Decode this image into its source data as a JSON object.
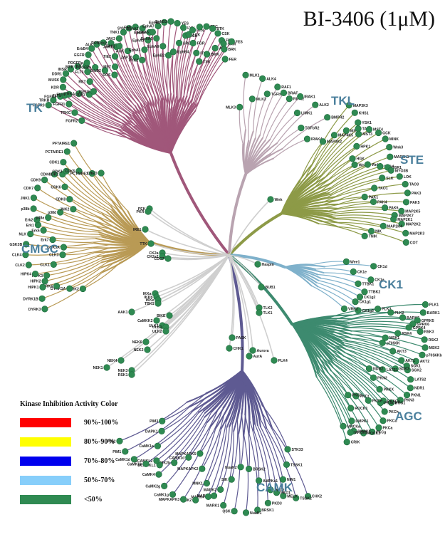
{
  "title": "BI-3406 (1μM)",
  "colors": {
    "TK": "#a0577a",
    "TKL": "#b9a3b0",
    "STE": "#8d9a47",
    "CK1": "#7fb1cb",
    "AGC": "#3d8a6f",
    "CAMK": "#5e5a92",
    "CMGC": "#b99a55",
    "OTHER": "#cccccc",
    "dot": "#2f8a52",
    "dotEdge": "#1d6a3c",
    "group_label": "#4a7f9c"
  },
  "legend": {
    "title": "Kinase Inhibition Activity Color",
    "items": [
      {
        "label": "90%-100%",
        "color": "#ff0000"
      },
      {
        "label": "80%-90%",
        "color": "#ffff00"
      },
      {
        "label": "70%-80%",
        "color": "#0000ee"
      },
      {
        "label": "50%-70%",
        "color": "#87cefa"
      },
      {
        "label": "<50%",
        "color": "#2f8a52"
      }
    ]
  },
  "groups": [
    {
      "key": "TK",
      "name": "TK"
    },
    {
      "key": "TKL",
      "name": "TKL"
    },
    {
      "key": "STE",
      "name": "STE"
    },
    {
      "key": "CK1",
      "name": "CK1"
    },
    {
      "key": "AGC",
      "name": "AGC"
    },
    {
      "key": "CAMK",
      "name": "CAMK"
    },
    {
      "key": "CMGC",
      "name": "CMGC"
    }
  ],
  "kinases": [
    {
      "g": "TK",
      "name": "FGFR2"
    },
    {
      "g": "TK",
      "name": "FGFR3"
    },
    {
      "g": "TK",
      "name": "TRKC"
    },
    {
      "g": "TK",
      "name": "TRKB"
    },
    {
      "g": "TK",
      "name": "FGFR1"
    },
    {
      "g": "TK",
      "name": "FGFR4"
    },
    {
      "g": "TK",
      "name": "FLT1"
    },
    {
      "g": "TK",
      "name": "FLT4"
    },
    {
      "g": "TK",
      "name": "KDR"
    },
    {
      "g": "TK",
      "name": "TRKA"
    },
    {
      "g": "TK",
      "name": "MUSK"
    },
    {
      "g": "TK",
      "name": "DDR2"
    },
    {
      "g": "TK",
      "name": "DDR1"
    },
    {
      "g": "TK",
      "name": "IGF1R"
    },
    {
      "g": "TK",
      "name": "INSR"
    },
    {
      "g": "TK",
      "name": "RET"
    },
    {
      "g": "TK",
      "name": "MER"
    },
    {
      "g": "TK",
      "name": "FLT3"
    },
    {
      "g": "TK",
      "name": "KIT"
    },
    {
      "g": "TK",
      "name": "PDGFRa"
    },
    {
      "g": "TK",
      "name": "PDGFRb"
    },
    {
      "g": "TK",
      "name": "EGFR"
    },
    {
      "g": "TK",
      "name": "ErbB2"
    },
    {
      "g": "TK",
      "name": "ErbB4"
    },
    {
      "g": "TK",
      "name": "ROS"
    },
    {
      "g": "TK",
      "name": "ALK"
    },
    {
      "g": "TK",
      "name": "MET"
    },
    {
      "g": "TK",
      "name": "RON"
    },
    {
      "g": "TK",
      "name": "TIE2"
    },
    {
      "g": "TK",
      "name": "TYK2"
    },
    {
      "g": "TK",
      "name": "JAK1"
    },
    {
      "g": "TK",
      "name": "JAK2"
    },
    {
      "g": "TK",
      "name": "JAK3"
    },
    {
      "g": "TK",
      "name": "ACK"
    },
    {
      "g": "TK",
      "name": "TNK1"
    },
    {
      "g": "TK",
      "name": "ZAP70"
    },
    {
      "g": "TK",
      "name": "SYK"
    },
    {
      "g": "TK",
      "name": "PYK2"
    },
    {
      "g": "TK",
      "name": "FAK"
    },
    {
      "g": "TK",
      "name": "EphA1"
    },
    {
      "g": "TK",
      "name": "EphA2"
    },
    {
      "g": "TK",
      "name": "EphA3"
    },
    {
      "g": "TK",
      "name": "EphA4"
    },
    {
      "g": "TK",
      "name": "EphA5"
    },
    {
      "g": "TK",
      "name": "EphA6"
    },
    {
      "g": "TK",
      "name": "EphA7"
    },
    {
      "g": "TK",
      "name": "EphA8"
    },
    {
      "g": "TK",
      "name": "EphB1"
    },
    {
      "g": "TK",
      "name": "EphB2"
    },
    {
      "g": "TK",
      "name": "EphB3"
    },
    {
      "g": "TK",
      "name": "EphB4"
    },
    {
      "g": "TK",
      "name": "YES"
    },
    {
      "g": "TK",
      "name": "SRC"
    },
    {
      "g": "TK",
      "name": "LYN"
    },
    {
      "g": "TK",
      "name": "HCK"
    },
    {
      "g": "TK",
      "name": "LCK"
    },
    {
      "g": "TK",
      "name": "FYN"
    },
    {
      "g": "TK",
      "name": "FGR"
    },
    {
      "g": "TK",
      "name": "BLK"
    },
    {
      "g": "TK",
      "name": "ITK"
    },
    {
      "g": "TK",
      "name": "TEC"
    },
    {
      "g": "TK",
      "name": "TXK"
    },
    {
      "g": "TK",
      "name": "BTK"
    },
    {
      "g": "TK",
      "name": "BMX"
    },
    {
      "g": "TK",
      "name": "CSK"
    },
    {
      "g": "TK",
      "name": "ABL"
    },
    {
      "g": "TK",
      "name": "FRK"
    },
    {
      "g": "TK",
      "name": "SRM"
    },
    {
      "g": "TK",
      "name": "BRK"
    },
    {
      "g": "TK",
      "name": "FES"
    },
    {
      "g": "TK",
      "name": "FER"
    },
    {
      "g": "TKL",
      "name": "MLK3"
    },
    {
      "g": "TKL",
      "name": "MLK1"
    },
    {
      "g": "TKL",
      "name": "MLK2"
    },
    {
      "g": "TKL",
      "name": "ALK4"
    },
    {
      "g": "TKL",
      "name": "TGFbR1"
    },
    {
      "g": "TKL",
      "name": "RAF1"
    },
    {
      "g": "TKL",
      "name": "BRAF"
    },
    {
      "g": "TKL",
      "name": "RIPK2"
    },
    {
      "g": "TKL",
      "name": "IRAK1"
    },
    {
      "g": "TKL",
      "name": "LIMK1"
    },
    {
      "g": "TKL",
      "name": "ALK2"
    },
    {
      "g": "TKL",
      "name": "TGFbR2"
    },
    {
      "g": "TKL",
      "name": "BMPR2"
    },
    {
      "g": "TKL",
      "name": "IRAK4"
    },
    {
      "g": "STE",
      "name": "MAP3K2"
    },
    {
      "g": "STE",
      "name": "MAP3K3"
    },
    {
      "g": "STE",
      "name": "MAP4K5"
    },
    {
      "g": "STE",
      "name": "KHS1"
    },
    {
      "g": "STE",
      "name": "MST1"
    },
    {
      "g": "STE",
      "name": "YSK1"
    },
    {
      "g": "STE",
      "name": "TAO2"
    },
    {
      "g": "STE",
      "name": "MST3"
    },
    {
      "g": "STE",
      "name": "MST4"
    },
    {
      "g": "STE",
      "name": "HPK1"
    },
    {
      "g": "STE",
      "name": "GCK"
    },
    {
      "g": "STE",
      "name": "HGK"
    },
    {
      "g": "STE",
      "name": "MINK"
    },
    {
      "g": "STE",
      "name": "Wnk1"
    },
    {
      "g": "STE",
      "name": "Wnk3"
    },
    {
      "g": "STE",
      "name": "Wnk2"
    },
    {
      "g": "STE",
      "name": "MAP3K1"
    },
    {
      "g": "STE",
      "name": "Wnk4"
    },
    {
      "g": "STE",
      "name": "OSR1"
    },
    {
      "g": "STE",
      "name": "MYO3B"
    },
    {
      "g": "STE",
      "name": "SLK"
    },
    {
      "g": "STE",
      "name": "LOK"
    },
    {
      "g": "STE",
      "name": "TAO1"
    },
    {
      "g": "STE",
      "name": "TAO3"
    },
    {
      "g": "STE",
      "name": "PAK1"
    },
    {
      "g": "STE",
      "name": "PAK3"
    },
    {
      "g": "STE",
      "name": "PAK4"
    },
    {
      "g": "STE",
      "name": "PAK5"
    },
    {
      "g": "STE",
      "name": "PAK6"
    },
    {
      "g": "STE",
      "name": "MAP2K5"
    },
    {
      "g": "STE",
      "name": "MAP2K7"
    },
    {
      "g": "STE",
      "name": "MAP2K1"
    },
    {
      "g": "STE",
      "name": "MAP2K2"
    },
    {
      "g": "STE",
      "name": "MAP2K4"
    },
    {
      "g": "STE",
      "name": "MAP2K3"
    },
    {
      "g": "STE",
      "name": "NIK"
    },
    {
      "g": "STE",
      "name": "COT"
    },
    {
      "g": "STE",
      "name": "TNIK"
    },
    {
      "g": "CK1",
      "name": "Wee1"
    },
    {
      "g": "CK1",
      "name": "CK1d"
    },
    {
      "g": "CK1",
      "name": "CK1e"
    },
    {
      "g": "CK1",
      "name": "CK1a"
    },
    {
      "g": "CK1",
      "name": "TTBK1"
    },
    {
      "g": "CK1",
      "name": "TTBK2"
    },
    {
      "g": "CK1",
      "name": "CK1g2"
    },
    {
      "g": "CK1",
      "name": "CK1g1"
    },
    {
      "g": "CK1",
      "name": "CK1g3"
    },
    {
      "g": "CK1",
      "name": "VRK2"
    },
    {
      "g": "AGC",
      "name": "PLK3"
    },
    {
      "g": "AGC",
      "name": "PLK1"
    },
    {
      "g": "AGC",
      "name": "PLK2"
    },
    {
      "g": "AGC",
      "name": "BARK1"
    },
    {
      "g": "AGC",
      "name": "BARK2"
    },
    {
      "g": "AGC",
      "name": "GPRK5"
    },
    {
      "g": "AGC",
      "name": "GPRK6"
    },
    {
      "g": "AGC",
      "name": "GPRK4"
    },
    {
      "g": "AGC",
      "name": "RSK3"
    },
    {
      "g": "AGC",
      "name": "RSK4"
    },
    {
      "g": "AGC",
      "name": "RSK2"
    },
    {
      "g": "AGC",
      "name": "MSK1"
    },
    {
      "g": "AGC",
      "name": "MSK2"
    },
    {
      "g": "AGC",
      "name": "p70S6K"
    },
    {
      "g": "AGC",
      "name": "p70S6Kb"
    },
    {
      "g": "AGC",
      "name": "AKT3"
    },
    {
      "g": "AGC",
      "name": "AKT2"
    },
    {
      "g": "AGC",
      "name": "AKT1"
    },
    {
      "g": "AGC",
      "name": "SGK1"
    },
    {
      "g": "AGC",
      "name": "SGK2"
    },
    {
      "g": "AGC",
      "name": "SGK3"
    },
    {
      "g": "AGC",
      "name": "LATS2"
    },
    {
      "g": "AGC",
      "name": "LATS1"
    },
    {
      "g": "AGC",
      "name": "NDR1"
    },
    {
      "g": "AGC",
      "name": "NDR2"
    },
    {
      "g": "AGC",
      "name": "PKN1"
    },
    {
      "g": "AGC",
      "name": "PKN2"
    },
    {
      "g": "AGC",
      "name": "PKN3"
    },
    {
      "g": "AGC",
      "name": "PRKX"
    },
    {
      "g": "AGC",
      "name": "PKG1"
    },
    {
      "g": "AGC",
      "name": "PKACa"
    },
    {
      "g": "AGC",
      "name": "PKACb"
    },
    {
      "g": "AGC",
      "name": "PKCh"
    },
    {
      "g": "AGC",
      "name": "PKCe"
    },
    {
      "g": "AGC",
      "name": "PKCd"
    },
    {
      "g": "AGC",
      "name": "PKCt"
    },
    {
      "g": "AGC",
      "name": "PKCa"
    },
    {
      "g": "AGC",
      "name": "PKCb"
    },
    {
      "g": "AGC",
      "name": "PKCg"
    },
    {
      "g": "AGC",
      "name": "ROCK1"
    },
    {
      "g": "AGC",
      "name": "ROCK2"
    },
    {
      "g": "AGC",
      "name": "DMPK1"
    },
    {
      "g": "AGC",
      "name": "DMPK2"
    },
    {
      "g": "AGC",
      "name": "MRCKb"
    },
    {
      "g": "AGC",
      "name": "MRCKa"
    },
    {
      "g": "AGC",
      "name": "CRIK"
    },
    {
      "g": "CAMK",
      "name": "STK33"
    },
    {
      "g": "CAMK",
      "name": "CHK2"
    },
    {
      "g": "CAMK",
      "name": "TSSK1"
    },
    {
      "g": "CAMK",
      "name": "TSSK2"
    },
    {
      "g": "CAMK",
      "name": "NIM1"
    },
    {
      "g": "CAMK",
      "name": "MELK"
    },
    {
      "g": "CAMK",
      "name": "PKD1"
    },
    {
      "g": "CAMK",
      "name": "PKD2"
    },
    {
      "g": "CAMK",
      "name": "PKD3"
    },
    {
      "g": "CAMK",
      "name": "AMPKa1"
    },
    {
      "g": "CAMK",
      "name": "BRSK1"
    },
    {
      "g": "CAMK",
      "name": "BRSK2"
    },
    {
      "g": "CAMK",
      "name": "NuaK1"
    },
    {
      "g": "CAMK",
      "name": "NuaK2"
    },
    {
      "g": "CAMK",
      "name": "QSK"
    },
    {
      "g": "CAMK",
      "name": "SIK"
    },
    {
      "g": "CAMK",
      "name": "MARK1"
    },
    {
      "g": "CAMK",
      "name": "MARK2"
    },
    {
      "g": "CAMK",
      "name": "MARK3"
    },
    {
      "g": "CAMK",
      "name": "MARK4"
    },
    {
      "g": "CAMK",
      "name": "MNK1"
    },
    {
      "g": "CAMK",
      "name": "MNK2"
    },
    {
      "g": "CAMK",
      "name": "MAPKAPK2"
    },
    {
      "g": "CAMK",
      "name": "MAPKAPK3"
    },
    {
      "g": "CAMK",
      "name": "MAPKAPK5"
    },
    {
      "g": "CAMK",
      "name": "CaMK1g"
    },
    {
      "g": "CAMK",
      "name": "CAMK1d"
    },
    {
      "g": "CAMK",
      "name": "CaMK2g"
    },
    {
      "g": "CAMK",
      "name": "CaMK2b"
    },
    {
      "g": "CAMK",
      "name": "CaMK4"
    },
    {
      "g": "CAMK",
      "name": "DCAMKL1"
    },
    {
      "g": "CAMK",
      "name": "DCAMKL2"
    },
    {
      "g": "CAMK",
      "name": "CaMK1b"
    },
    {
      "g": "CAMK",
      "name": "CaMK1a"
    },
    {
      "g": "CAMK",
      "name": "CaMK1d"
    },
    {
      "g": "CAMK",
      "name": "DAPK1"
    },
    {
      "g": "CAMK",
      "name": "PIM1"
    },
    {
      "g": "CAMK",
      "name": "PIM3"
    },
    {
      "g": "CAMK",
      "name": "PIM2"
    },
    {
      "g": "CMGC",
      "name": "DYRK2"
    },
    {
      "g": "CMGC",
      "name": "DYRK3"
    },
    {
      "g": "CMGC",
      "name": "DYRK1A"
    },
    {
      "g": "CMGC",
      "name": "DYRK1B"
    },
    {
      "g": "CMGC",
      "name": "DYRK4"
    },
    {
      "g": "CMGC",
      "name": "HIPK1"
    },
    {
      "g": "CMGC",
      "name": "HIPK2"
    },
    {
      "g": "CMGC",
      "name": "HIPK3"
    },
    {
      "g": "CMGC",
      "name": "HIPK4"
    },
    {
      "g": "CMGC",
      "name": "CLK1"
    },
    {
      "g": "CMGC",
      "name": "CLK2"
    },
    {
      "g": "CMGC",
      "name": "CLK3"
    },
    {
      "g": "CMGC",
      "name": "CLK4"
    },
    {
      "g": "CMGC",
      "name": "GSK3A"
    },
    {
      "g": "CMGC",
      "name": "GSK3B"
    },
    {
      "g": "CMGC",
      "name": "Erk7"
    },
    {
      "g": "CMGC",
      "name": "NLK"
    },
    {
      "g": "CMGC",
      "name": "Erk5"
    },
    {
      "g": "CMGC",
      "name": "Erk1"
    },
    {
      "g": "CMGC",
      "name": "Erk2"
    },
    {
      "g": "CMGC",
      "name": "p38a"
    },
    {
      "g": "CMGC",
      "name": "p38b"
    },
    {
      "g": "CMGC",
      "name": "p38d"
    },
    {
      "g": "CMGC",
      "name": "JNK1"
    },
    {
      "g": "CMGC",
      "name": "JNK2"
    },
    {
      "g": "CMGC",
      "name": "CDK7"
    },
    {
      "g": "CMGC",
      "name": "CDK8"
    },
    {
      "g": "CMGC",
      "name": "CDK9"
    },
    {
      "g": "CMGC",
      "name": "CDK6"
    },
    {
      "g": "CMGC",
      "name": "CDK4"
    },
    {
      "g": "CMGC",
      "name": "CDK2"
    },
    {
      "g": "CMGC",
      "name": "CDK3"
    },
    {
      "g": "CMGC",
      "name": "CDK1"
    },
    {
      "g": "CMGC",
      "name": "CDK5"
    },
    {
      "g": "CMGC",
      "name": "PCTAIRE1"
    },
    {
      "g": "CMGC",
      "name": "PCTAIRE3"
    },
    {
      "g": "CMGC",
      "name": "PFTAIRE1"
    },
    {
      "g": "CMGC",
      "name": "CHED"
    },
    {
      "g": "OTHER",
      "name": "PEK"
    },
    {
      "g": "OTHER",
      "name": "PKR"
    },
    {
      "g": "OTHER",
      "name": "IRE1"
    },
    {
      "g": "OTHER",
      "name": "TTK"
    },
    {
      "g": "OTHER",
      "name": "CK2a"
    },
    {
      "g": "OTHER",
      "name": "CK2a2"
    },
    {
      "g": "OTHER",
      "name": "CDC7"
    },
    {
      "g": "OTHER",
      "name": "Haspin"
    },
    {
      "g": "OTHER",
      "name": "BUB1"
    },
    {
      "g": "OTHER",
      "name": "IKKa"
    },
    {
      "g": "OTHER",
      "name": "IKKb"
    },
    {
      "g": "OTHER",
      "name": "IKKe"
    },
    {
      "g": "OTHER",
      "name": "TBK1"
    },
    {
      "g": "OTHER",
      "name": "AAK1"
    },
    {
      "g": "OTHER",
      "name": "BIKE"
    },
    {
      "g": "OTHER",
      "name": "CaMKK2"
    },
    {
      "g": "OTHER",
      "name": "ULK3"
    },
    {
      "g": "OTHER",
      "name": "ULK1"
    },
    {
      "g": "OTHER",
      "name": "ULK2"
    },
    {
      "g": "OTHER",
      "name": "TLK2"
    },
    {
      "g": "OTHER",
      "name": "TLK1"
    },
    {
      "g": "OTHER",
      "name": "PASK"
    },
    {
      "g": "OTHER",
      "name": "CHK1"
    },
    {
      "g": "OTHER",
      "name": "NEK6"
    },
    {
      "g": "OTHER",
      "name": "NEK2"
    },
    {
      "g": "OTHER",
      "name": "NEK4"
    },
    {
      "g": "OTHER",
      "name": "NEK1"
    },
    {
      "g": "OTHER",
      "name": "NEK3"
    },
    {
      "g": "OTHER",
      "name": "RSK1"
    },
    {
      "g": "OTHER",
      "name": "Aurora"
    },
    {
      "g": "OTHER",
      "name": "AurA"
    },
    {
      "g": "OTHER",
      "name": "PLK4"
    },
    {
      "g": "OTHER",
      "name": "Wnk"
    }
  ]
}
